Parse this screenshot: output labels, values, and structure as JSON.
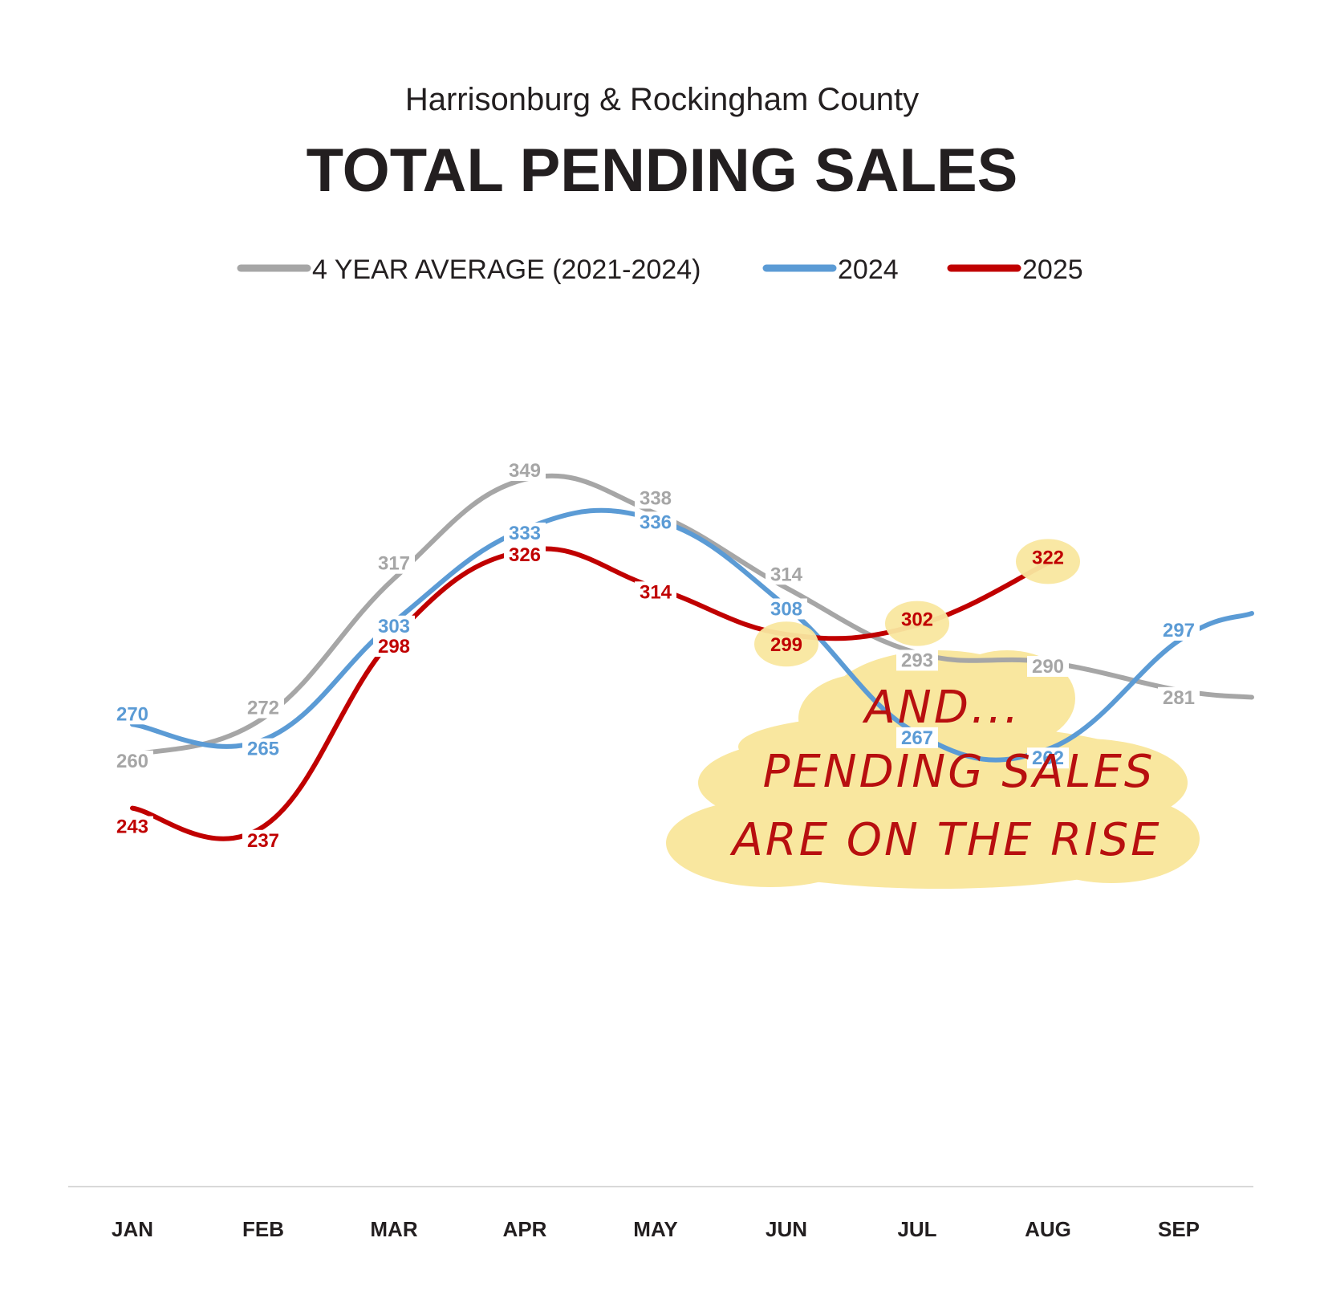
{
  "chart_data": {
    "type": "line",
    "subtitle": "Harrisonburg & Rockingham County",
    "title": "TOTAL PENDING SALES",
    "categories": [
      "JAN",
      "FEB",
      "MAR",
      "APR",
      "MAY",
      "JUN",
      "JUL",
      "AUG",
      "SEP"
    ],
    "ylim": [
      180,
      400
    ],
    "grid": false,
    "legend_position": "top",
    "series": [
      {
        "name": "4 YEAR AVERAGE (2021-2024)",
        "color": "#a6a6a6",
        "label_color": "#a6a6a6",
        "values": [
          260,
          272,
          317,
          349,
          338,
          314,
          293,
          290,
          281
        ],
        "extends_past_last": true
      },
      {
        "name": "2024",
        "color": "#5b9bd5",
        "label_color": "#5b9bd5",
        "values": [
          270,
          265,
          303,
          333,
          336,
          308,
          267,
          262,
          297
        ],
        "extends_past_last": true
      },
      {
        "name": "2025",
        "color": "#c00000",
        "label_color": "#c00000",
        "values": [
          243,
          237,
          298,
          326,
          314,
          299,
          302,
          322,
          null
        ],
        "extends_past_last": false
      }
    ],
    "highlighted_points": [
      {
        "series": "2025",
        "category": "JUN"
      },
      {
        "series": "2025",
        "category": "JUL"
      },
      {
        "series": "2025",
        "category": "AUG"
      }
    ],
    "annotation": {
      "lines": [
        "AND...",
        "PENDING SALES",
        "ARE ON THE RISE"
      ],
      "highlight_color": "#f9e79f",
      "text_color": "#b80f0f"
    }
  }
}
